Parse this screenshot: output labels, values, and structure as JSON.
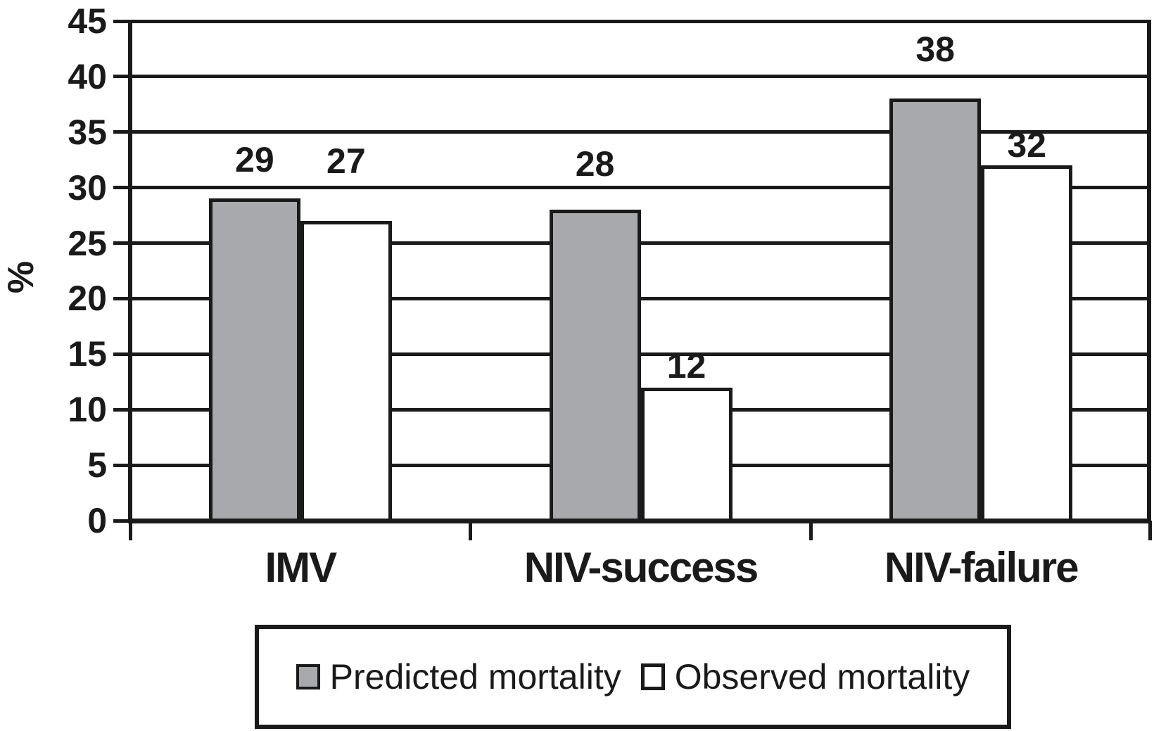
{
  "chart_data": {
    "type": "bar",
    "title": "",
    "xlabel": "",
    "ylabel": "%",
    "ylim": [
      0,
      45
    ],
    "ytick_step": 5,
    "yticks": [
      0,
      5,
      10,
      15,
      20,
      25,
      30,
      35,
      40,
      45
    ],
    "grid": true,
    "grid_orientation": "horizontal",
    "categories": [
      "IMV",
      "NIV-success",
      "NIV-failure"
    ],
    "series": [
      {
        "name": "Predicted mortality",
        "color": "#a7a9ac",
        "values": [
          29,
          28,
          38
        ]
      },
      {
        "name": "Observed mortality",
        "color": "#ffffff",
        "values": [
          27,
          12,
          32
        ]
      }
    ],
    "data_labels_shown": true,
    "legend_position": "bottom"
  },
  "colors": {
    "line": "#1a1a1a",
    "predicted_fill": "#a7a9ac",
    "observed_fill": "#ffffff",
    "background": "#ffffff"
  }
}
